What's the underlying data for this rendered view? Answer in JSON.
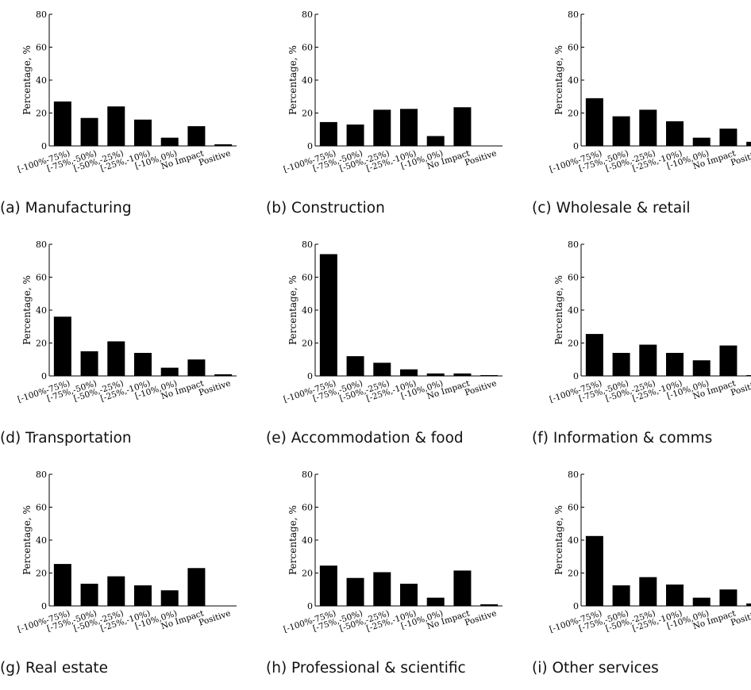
{
  "categories": [
    "[-100%-75%)",
    "[-75%,-50%)",
    "[-50%,-25%)",
    "[-25%,-10%)",
    "[-10%,0%)",
    "No Impact",
    "Positive"
  ],
  "ylabel": "Percentage, %",
  "yticks": [
    0,
    20,
    40,
    60,
    80
  ],
  "chart_data": [
    {
      "type": "bar",
      "caption": "(a) Manufacturing",
      "ylim": [
        0,
        80
      ],
      "values": [
        27,
        17,
        24,
        16,
        5,
        12,
        1
      ]
    },
    {
      "type": "bar",
      "caption": "(b) Construction",
      "ylim": [
        0,
        80
      ],
      "values": [
        14.5,
        13,
        22,
        22.5,
        6,
        23.5,
        0
      ]
    },
    {
      "type": "bar",
      "caption": "(c) Wholesale & retail",
      "ylim": [
        0,
        80
      ],
      "values": [
        29,
        18,
        22,
        15,
        5,
        10.5,
        2.5
      ]
    },
    {
      "type": "bar",
      "caption": "(d) Transportation",
      "ylim": [
        0,
        80
      ],
      "values": [
        36,
        15,
        21,
        14,
        5,
        10,
        1
      ]
    },
    {
      "type": "bar",
      "caption": "(e) Accommodation & food",
      "ylim": [
        0,
        80
      ],
      "values": [
        74,
        12,
        8,
        4,
        1.5,
        1.5,
        0.5
      ]
    },
    {
      "type": "bar",
      "caption": "(f) Information & comms",
      "ylim": [
        0,
        80
      ],
      "values": [
        25.5,
        14,
        19,
        14,
        9.5,
        18.5,
        0.5
      ]
    },
    {
      "type": "bar",
      "caption": "(g) Real estate",
      "ylim": [
        0,
        80
      ],
      "values": [
        25.5,
        13.5,
        18,
        12.5,
        9.5,
        23,
        0
      ]
    },
    {
      "type": "bar",
      "caption": "(h) Professional & scientific",
      "ylim": [
        0,
        80
      ],
      "values": [
        24.5,
        17,
        20.5,
        13.5,
        5,
        21.5,
        1
      ]
    },
    {
      "type": "bar",
      "caption": "(i) Other services",
      "ylim": [
        0,
        80
      ],
      "values": [
        42.5,
        12.5,
        17.5,
        13,
        5,
        10,
        1.5
      ]
    }
  ]
}
